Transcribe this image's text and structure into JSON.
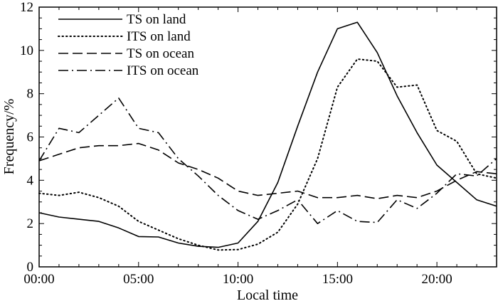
{
  "chart_data": {
    "type": "line",
    "xlabel": "Local time",
    "ylabel": "Frequency/%",
    "xlim": [
      0,
      23
    ],
    "ylim": [
      0,
      12
    ],
    "x_ticks": [
      0,
      5,
      10,
      15,
      20
    ],
    "x_tick_labels": [
      "00:00",
      "05:00",
      "10:00",
      "15:00",
      "20:00"
    ],
    "y_ticks": [
      0,
      2,
      4,
      6,
      8,
      10,
      12
    ],
    "y_tick_labels": [
      "0",
      "2",
      "4",
      "6",
      "8",
      "10",
      "12"
    ],
    "grid": false,
    "legend_position": "top-left",
    "x": [
      0,
      1,
      2,
      3,
      4,
      5,
      6,
      7,
      8,
      9,
      10,
      11,
      12,
      13,
      14,
      15,
      16,
      17,
      18,
      19,
      20,
      21,
      22,
      23
    ],
    "series": [
      {
        "name": "TS on land",
        "style": "solid",
        "values": [
          2.5,
          2.3,
          2.2,
          2.1,
          1.8,
          1.4,
          1.38,
          1.1,
          0.95,
          0.9,
          1.1,
          2.1,
          3.9,
          6.5,
          9.0,
          11.0,
          11.3,
          9.9,
          7.9,
          6.2,
          4.7,
          3.9,
          3.1,
          2.8
        ]
      },
      {
        "name": "ITS on land",
        "style": "dotted",
        "values": [
          3.4,
          3.3,
          3.45,
          3.2,
          2.8,
          2.1,
          1.7,
          1.3,
          1.0,
          0.78,
          0.8,
          1.05,
          1.6,
          2.9,
          5.0,
          8.3,
          9.6,
          9.5,
          8.3,
          8.4,
          6.3,
          5.8,
          4.3,
          4.1
        ]
      },
      {
        "name": "TS on ocean",
        "style": "dashed",
        "values": [
          4.9,
          5.2,
          5.5,
          5.6,
          5.6,
          5.7,
          5.4,
          4.8,
          4.5,
          4.1,
          3.5,
          3.3,
          3.4,
          3.5,
          3.2,
          3.2,
          3.3,
          3.15,
          3.3,
          3.2,
          3.5,
          4.0,
          4.4,
          4.3
        ]
      },
      {
        "name": "ITS on ocean",
        "style": "dashdot",
        "values": [
          4.9,
          6.4,
          6.2,
          7.0,
          7.8,
          6.4,
          6.2,
          5.0,
          4.2,
          3.3,
          2.6,
          2.2,
          2.6,
          3.1,
          2.0,
          2.6,
          2.1,
          2.05,
          3.1,
          2.7,
          3.4,
          4.3,
          4.2,
          5.0
        ]
      }
    ]
  }
}
